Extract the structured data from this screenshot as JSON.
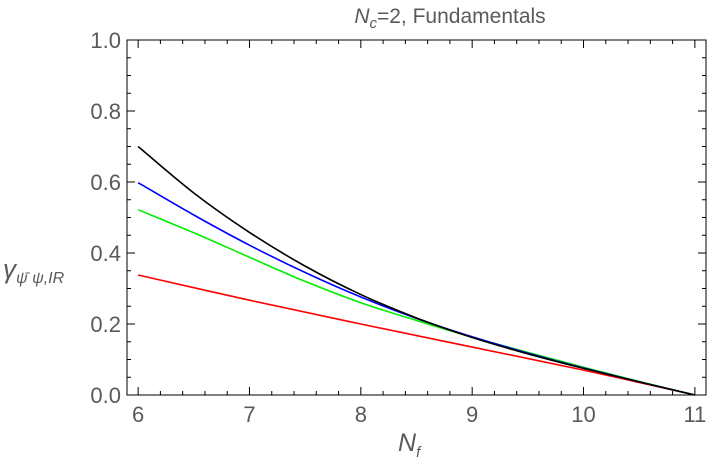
{
  "chart_data": {
    "type": "line",
    "title": {
      "main": "N",
      "main_sub": "c",
      "rest": "=2, Fundamentals"
    },
    "xlabel": {
      "main": "N",
      "sub": "f"
    },
    "ylabel": {
      "main": "γ",
      "sub": "ψ̄ ψ,IR"
    },
    "xlim": [
      5.9,
      11.1
    ],
    "ylim": [
      0.0,
      1.0
    ],
    "xticks": [
      "6",
      "7",
      "8",
      "9",
      "10",
      "11"
    ],
    "yticks": [
      "0.0",
      "0.2",
      "0.4",
      "0.6",
      "0.8",
      "1.0"
    ],
    "grid": false,
    "series": [
      {
        "color": "#ff0000",
        "x": [
          6,
          7,
          8,
          9,
          10,
          11
        ],
        "y": [
          0.338,
          0.267,
          0.2,
          0.135,
          0.07,
          0.0
        ]
      },
      {
        "color": "#00ee00",
        "x": [
          6,
          6.5,
          7,
          7.5,
          8,
          8.5,
          9,
          9.5,
          10,
          10.5,
          11
        ],
        "y": [
          0.522,
          0.457,
          0.388,
          0.32,
          0.26,
          0.21,
          0.163,
          0.12,
          0.078,
          0.038,
          0.0
        ]
      },
      {
        "color": "#0000ff",
        "x": [
          6,
          6.5,
          7,
          7.5,
          8,
          8.5,
          9,
          9.5,
          10,
          10.5,
          11
        ],
        "y": [
          0.598,
          0.507,
          0.422,
          0.345,
          0.276,
          0.216,
          0.164,
          0.118,
          0.076,
          0.037,
          0.0
        ]
      },
      {
        "color": "#000000",
        "x": [
          6,
          6.5,
          7,
          7.5,
          8,
          8.5,
          9,
          9.5,
          10,
          10.5,
          11
        ],
        "y": [
          0.7,
          0.569,
          0.458,
          0.363,
          0.283,
          0.217,
          0.162,
          0.116,
          0.075,
          0.037,
          0.0
        ]
      }
    ]
  }
}
